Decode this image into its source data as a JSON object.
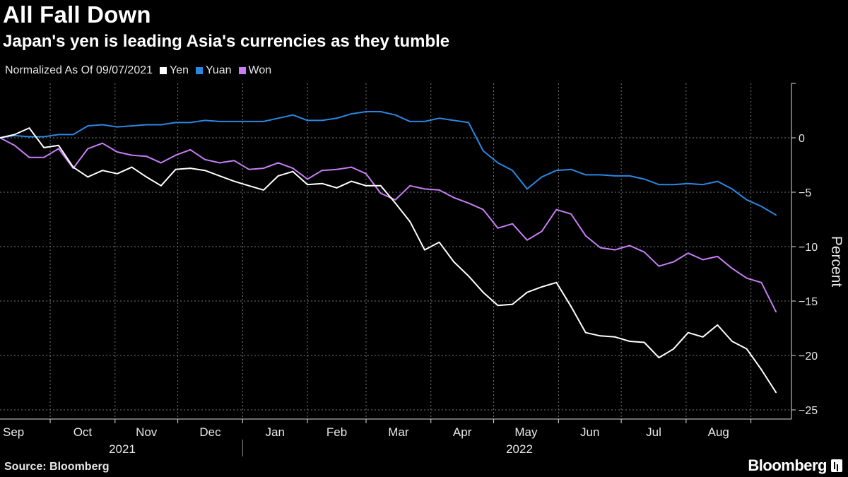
{
  "title": "All Fall Down",
  "subtitle": "Japan's yen is leading Asia's currencies as they tumble",
  "source": "Source: Bloomberg",
  "logo": "Bloomberg",
  "chart_data": {
    "type": "line",
    "legend_prefix": "Normalized As Of 09/07/2021",
    "legend_placement": "top-left",
    "ylabel": "Percent",
    "ylim": [
      -26,
      5
    ],
    "yticks": [
      0,
      -5,
      -10,
      -15,
      -20,
      -25
    ],
    "y_axis_side": "right",
    "grid": true,
    "xlim": [
      "2021-09-07",
      "2022-09-20"
    ],
    "month_labels": [
      "Sep",
      "Oct",
      "Nov",
      "Dec",
      "Jan",
      "Feb",
      "Mar",
      "Apr",
      "May",
      "Jun",
      "Jul",
      "Aug"
    ],
    "year_labels": [
      "2021",
      "2022"
    ],
    "x": [
      "2021-09-07",
      "2021-09-14",
      "2021-09-21",
      "2021-09-28",
      "2021-10-05",
      "2021-10-12",
      "2021-10-19",
      "2021-10-26",
      "2021-11-02",
      "2021-11-09",
      "2021-11-16",
      "2021-11-23",
      "2021-11-30",
      "2021-12-07",
      "2021-12-14",
      "2021-12-21",
      "2021-12-28",
      "2022-01-04",
      "2022-01-11",
      "2022-01-18",
      "2022-01-25",
      "2022-02-01",
      "2022-02-08",
      "2022-02-15",
      "2022-02-22",
      "2022-03-01",
      "2022-03-08",
      "2022-03-15",
      "2022-03-22",
      "2022-03-29",
      "2022-04-05",
      "2022-04-12",
      "2022-04-19",
      "2022-04-26",
      "2022-05-03",
      "2022-05-10",
      "2022-05-17",
      "2022-05-24",
      "2022-05-31",
      "2022-06-07",
      "2022-06-14",
      "2022-06-21",
      "2022-06-28",
      "2022-07-05",
      "2022-07-12",
      "2022-07-19",
      "2022-07-26",
      "2022-08-02",
      "2022-08-09",
      "2022-08-16",
      "2022-08-23",
      "2022-08-30",
      "2022-09-06",
      "2022-09-13"
    ],
    "series": [
      {
        "name": "Yen",
        "color": "#ffffff",
        "values": [
          0,
          0.3,
          0.9,
          -0.9,
          -0.7,
          -2.7,
          -3.6,
          -3.0,
          -3.3,
          -2.7,
          -3.6,
          -4.4,
          -2.9,
          -2.8,
          -3.0,
          -3.5,
          -4.0,
          -4.4,
          -4.8,
          -3.5,
          -3.1,
          -4.3,
          -4.2,
          -4.6,
          -4.0,
          -4.4,
          -4.4,
          -6.0,
          -7.7,
          -10.3,
          -9.6,
          -11.4,
          -12.7,
          -14.2,
          -15.4,
          -15.3,
          -14.2,
          -13.7,
          -13.3,
          -15.5,
          -17.9,
          -18.2,
          -18.3,
          -18.7,
          -18.8,
          -20.2,
          -19.4,
          -17.9,
          -18.3,
          -17.2,
          -18.7,
          -19.4,
          -21.3,
          -23.4
        ]
      },
      {
        "name": "Yuan",
        "color": "#2b87e3",
        "values": [
          0,
          0.2,
          0.1,
          0.1,
          0.3,
          0.3,
          1.1,
          1.2,
          1.0,
          1.1,
          1.2,
          1.2,
          1.4,
          1.4,
          1.6,
          1.5,
          1.5,
          1.5,
          1.5,
          1.8,
          2.1,
          1.6,
          1.6,
          1.8,
          2.2,
          2.4,
          2.4,
          2.1,
          1.5,
          1.5,
          1.8,
          1.6,
          1.4,
          -1.2,
          -2.3,
          -3.0,
          -4.7,
          -3.6,
          -3.0,
          -2.9,
          -3.4,
          -3.4,
          -3.5,
          -3.5,
          -3.8,
          -4.3,
          -4.3,
          -4.2,
          -4.3,
          -4.0,
          -4.7,
          -5.7,
          -6.3,
          -7.1
        ]
      },
      {
        "name": "Won",
        "color": "#c77ef4",
        "values": [
          0,
          -0.7,
          -1.8,
          -1.8,
          -1.0,
          -2.8,
          -1.0,
          -0.5,
          -1.3,
          -1.6,
          -1.7,
          -2.3,
          -1.6,
          -1.1,
          -2.0,
          -2.3,
          -2.1,
          -2.9,
          -2.8,
          -2.3,
          -2.8,
          -3.8,
          -3.0,
          -2.9,
          -2.7,
          -3.3,
          -5.1,
          -5.7,
          -4.4,
          -4.7,
          -4.8,
          -5.5,
          -6.0,
          -6.6,
          -8.3,
          -7.9,
          -9.4,
          -8.6,
          -6.6,
          -7.0,
          -9.0,
          -10.1,
          -10.3,
          -9.9,
          -10.5,
          -11.8,
          -11.4,
          -10.6,
          -11.2,
          -10.9,
          -12.0,
          -12.9,
          -13.3,
          -16.0
        ]
      }
    ]
  }
}
